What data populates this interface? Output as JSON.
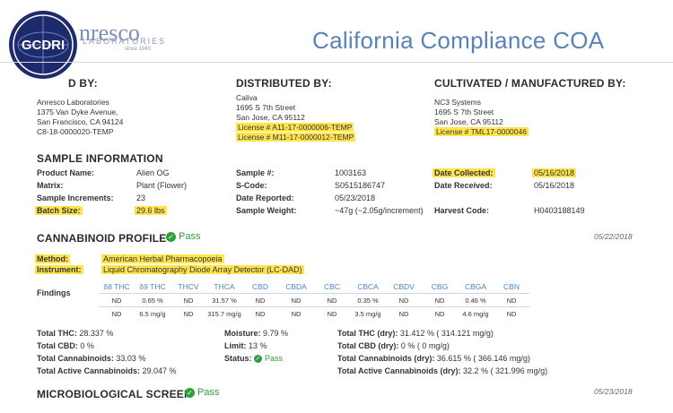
{
  "header": {
    "logo_brand": "nresco",
    "logo_sub": "LABORATORIES",
    "logo_since": "since 1943",
    "seal_text": "GCDRI",
    "title": "California Compliance COA"
  },
  "parties": {
    "tested": {
      "heading": "D BY:",
      "lines": [
        "Anresco Laboratories",
        "1375 Van Dyke Avenue,",
        "San Francisco, CA 94124",
        "C8-18-0000020-TEMP"
      ]
    },
    "distributed": {
      "heading": "DISTRIBUTED BY:",
      "lines": [
        "Caliva",
        "1695 S 7th Street",
        "San Jose, CA 95112"
      ],
      "license1": "License # A11-17-0000006-TEMP",
      "license2": "License # M11-17-0000012-TEMP"
    },
    "cultivated": {
      "heading": "CULTIVATED / MANUFACTURED BY:",
      "lines": [
        "NC3 Systems",
        "1695 S 7th Street",
        "San Jose, CA 95112"
      ],
      "license": "License # TML17-0000046"
    }
  },
  "sample": {
    "heading": "SAMPLE INFORMATION",
    "product_name_label": "Product Name:",
    "product_name": "Alien OG",
    "matrix_label": "Matrix:",
    "matrix": "Plant (Flower)",
    "increments_label": "Sample Increments:",
    "increments": "23",
    "batch_label": "Batch Size:",
    "batch": "29.6 lbs",
    "sample_no_label": "Sample #:",
    "sample_no": "1003163",
    "scode_label": "S-Code:",
    "scode": "S0515186747",
    "reported_label": "Date Reported:",
    "reported": "05/23/2018",
    "weight_label": "Sample Weight:",
    "weight": "~47g (~2.05g/increment)",
    "collected_label": "Date Collected:",
    "collected": "05/16/2018",
    "received_label": "Date Received:",
    "received": "05/16/2018",
    "harvest_label": "Harvest Code:",
    "harvest": "H0403188149"
  },
  "cannabinoid": {
    "heading": "CANNABINOID PROFILE",
    "pass": "Pass",
    "date": "05/22/2018",
    "method_label": "Method:",
    "method": "American Herbal Pharmacopoeia",
    "instrument_label": "Instrument:",
    "instrument": "Liquid Chromatography Diode Array Detector (LC-DAD)",
    "findings_label": "Findings",
    "columns": [
      "δ8 THC",
      "δ9 THC",
      "THCV",
      "THCA",
      "CBD",
      "CBDA",
      "CBC",
      "CBCA",
      "CBDV",
      "CBG",
      "CBGA",
      "CBN"
    ],
    "row_percent": [
      "ND",
      "0.65 %",
      "ND",
      "31.57 %",
      "ND",
      "ND",
      "ND",
      "0.35 %",
      "ND",
      "ND",
      "0.46 %",
      "ND"
    ],
    "row_mg": [
      "ND",
      "6.5 mg/g",
      "ND",
      "315.7 mg/g",
      "ND",
      "ND",
      "ND",
      "3.5 mg/g",
      "ND",
      "ND",
      "4.6 mg/g",
      "ND"
    ]
  },
  "totals": {
    "thc_label": "Total THC:",
    "thc": "28.337 %",
    "cbd_label": "Total CBD:",
    "cbd": "0 %",
    "cann_label": "Total Cannabinoids:",
    "cann": "33.03 %",
    "active_label": "Total Active Cannabinoids:",
    "active": "29.047 %",
    "moisture_label": "Moisture:",
    "moisture": "9.79 %",
    "limit_label": "Limit:",
    "limit": "13 %",
    "status_label": "Status:",
    "status": "Pass",
    "thc_dry_label": "Total THC (dry):",
    "thc_dry": "31.412 % ( 314.121 mg/g)",
    "cbd_dry_label": "Total CBD (dry):",
    "cbd_dry": "0 % ( 0 mg/g)",
    "cann_dry_label": "Total Cannabinoids (dry):",
    "cann_dry": "36.615 % ( 366.146 mg/g)",
    "active_dry_label": "Total Active Cannabinoids (dry):",
    "active_dry": "32.2 % ( 321.996 mg/g)"
  },
  "micro": {
    "heading": "MICROBIOLOGICAL SCREEN",
    "pass": "Pass",
    "date": "05/23/2018"
  },
  "colors": {
    "accent": "#5a82b8",
    "highlight": "#ffe44d",
    "pass": "#2e9e3e",
    "table_header": "#4a86c8"
  }
}
